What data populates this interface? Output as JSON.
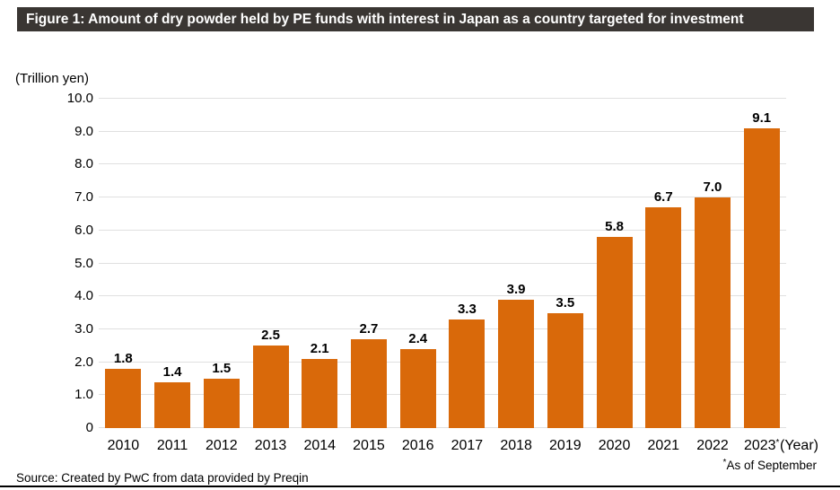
{
  "figure": {
    "title": "Figure 1: Amount of dry powder held by PE funds with interest in Japan as a country targeted for investment",
    "source": "Source: Created by PwC from data provided by Preqin",
    "footnote_marker": "*",
    "footnote_text": "As of September"
  },
  "chart_data": {
    "type": "bar",
    "title": "Amount of dry powder held by PE funds with interest in Japan as a country targeted for investment",
    "unit_label": "(Trillion yen)",
    "x_axis_suffix": "(Year)",
    "categories": [
      "2010",
      "2011",
      "2012",
      "2013",
      "2014",
      "2015",
      "2016",
      "2017",
      "2018",
      "2019",
      "2020",
      "2021",
      "2022",
      "2023"
    ],
    "values": [
      1.8,
      1.4,
      1.5,
      2.5,
      2.1,
      2.7,
      2.4,
      3.3,
      3.9,
      3.5,
      5.8,
      6.7,
      7.0,
      9.1
    ],
    "value_labels": [
      "1.8",
      "1.4",
      "1.5",
      "2.5",
      "2.1",
      "2.7",
      "2.4",
      "3.3",
      "3.9",
      "3.5",
      "5.8",
      "6.7",
      "7.0",
      "9.1"
    ],
    "last_category_marker": "*",
    "xlabel": "Year",
    "ylabel": "Trillion yen",
    "ylim": [
      0,
      10
    ],
    "y_ticks": [
      {
        "value": 10,
        "label": "10.0"
      },
      {
        "value": 9,
        "label": "9.0"
      },
      {
        "value": 8,
        "label": "8.0"
      },
      {
        "value": 7,
        "label": "7.0"
      },
      {
        "value": 6,
        "label": "6.0"
      },
      {
        "value": 5,
        "label": "5.0"
      },
      {
        "value": 4,
        "label": "4.0"
      },
      {
        "value": 3,
        "label": "3.0"
      },
      {
        "value": 2,
        "label": "2.0"
      },
      {
        "value": 1,
        "label": "1.0"
      },
      {
        "value": 0,
        "label": "0"
      }
    ],
    "grid": true,
    "legend": null,
    "colors": {
      "bar": "#d9690a",
      "title_bar_bg": "#3a3633",
      "title_text": "#ffffff",
      "gridline": "#e0e0e0",
      "text": "#000000"
    }
  }
}
